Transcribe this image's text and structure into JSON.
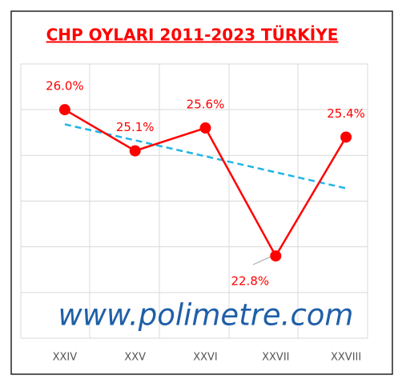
{
  "chart_data": {
    "type": "line",
    "title": "CHP OYLARI 2011-2023 TÜRKİYE",
    "watermark": "www.polimetre.com",
    "categories": [
      "XXIV",
      "XXV",
      "XXVI",
      "XXVII",
      "XXVIII"
    ],
    "series": [
      {
        "name": "CHP",
        "color": "#ff0000",
        "values": [
          26.0,
          25.1,
          25.6,
          22.8,
          25.4
        ],
        "value_labels": [
          "26.0%",
          "25.1%",
          "25.6%",
          "22.8%",
          "25.4%"
        ]
      }
    ],
    "trendline": {
      "color": "#1fb5e8",
      "style": "dashed"
    },
    "ylim": [
      21,
      27
    ],
    "yticks": [
      21,
      22,
      23,
      24,
      25,
      26,
      27
    ],
    "grid": true
  }
}
